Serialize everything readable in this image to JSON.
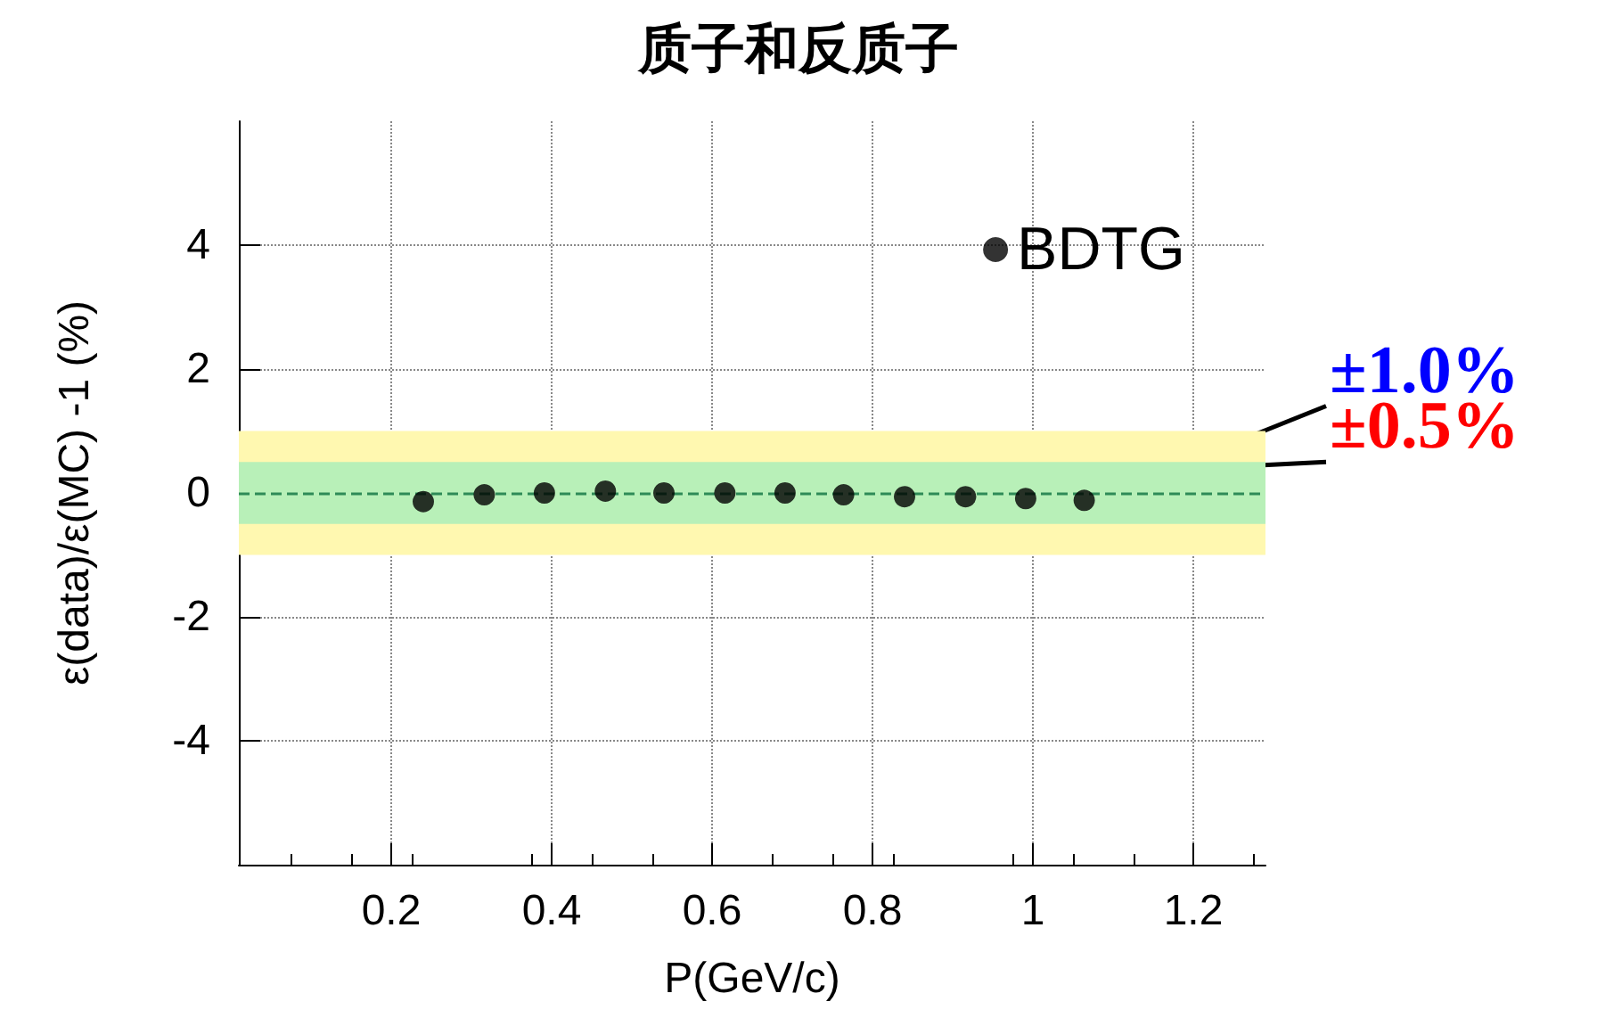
{
  "chart_data": {
    "type": "scatter",
    "title": "质子和反质子",
    "xlabel": "P(GeV/c)",
    "ylabel": "ε(data)/ε(MC) -1 (%)",
    "x": [
      0.24,
      0.316,
      0.391,
      0.467,
      0.54,
      0.616,
      0.691,
      0.764,
      0.84,
      0.916,
      0.991,
      1.064
    ],
    "series": [
      {
        "name": "BDTG",
        "color": "#000000",
        "values": [
          -0.14,
          -0.03,
          0,
          0.03,
          0,
          0,
          0,
          -0.03,
          -0.06,
          -0.06,
          -0.09,
          -0.12
        ]
      }
    ],
    "xlim": [
      0.01,
      1.29
    ],
    "xticks": [
      0.2,
      0.4,
      0.6,
      0.8,
      1,
      1.2
    ],
    "ylim": [
      -6,
      6
    ],
    "yticks": [
      -4,
      -2,
      0,
      2,
      4
    ],
    "bands": [
      {
        "axis": "y",
        "from": -1,
        "to": 1,
        "label": "±1.0%",
        "color": "#fff8b0"
      },
      {
        "axis": "y",
        "from": -0.5,
        "to": 0.5,
        "label": "±0.5%",
        "color": "#b8f0b8"
      }
    ],
    "ref_lines": [
      {
        "axis": "y",
        "value": 0,
        "color": "#2e8b57",
        "line_style": "dashed"
      }
    ],
    "grid": true,
    "legend": "top right",
    "marker": "circle"
  }
}
